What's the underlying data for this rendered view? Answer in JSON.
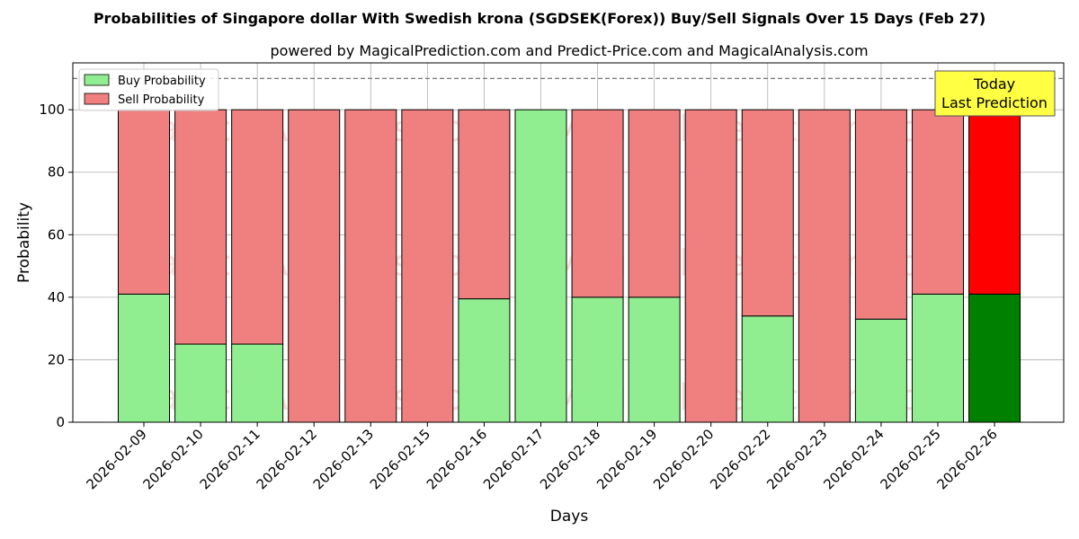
{
  "chart_data": {
    "type": "bar",
    "stacked": true,
    "title": "Probabilities of Singapore dollar With Swedish krona (SGDSEK(Forex)) Buy/Sell Signals Over 15 Days (Feb 27)",
    "subtitle": "powered by MagicalPrediction.com and Predict-Price.com and MagicalAnalysis.com",
    "xlabel": "Days",
    "ylabel": "Probability",
    "ylim": [
      0,
      115
    ],
    "yticks": [
      0,
      20,
      40,
      60,
      80,
      100
    ],
    "grid": true,
    "legend_position": "top-left",
    "reference_line": 110,
    "categories": [
      "2026-02-09",
      "2026-02-10",
      "2026-02-11",
      "2026-02-12",
      "2026-02-13",
      "2026-02-15",
      "2026-02-16",
      "2026-02-17",
      "2026-02-18",
      "2026-02-19",
      "2026-02-20",
      "2026-02-22",
      "2026-02-23",
      "2026-02-24",
      "2026-02-25",
      "2026-02-26"
    ],
    "series": [
      {
        "name": "Buy Probability",
        "color": "#90ee90",
        "highlight_color": "#008000",
        "values": [
          41,
          25,
          25,
          0,
          0,
          0,
          39.5,
          100,
          40,
          40,
          0,
          34,
          0,
          33,
          41,
          41
        ]
      },
      {
        "name": "Sell Probability",
        "color": "#f08080",
        "highlight_color": "#ff0000",
        "values": [
          59,
          75,
          75,
          100,
          100,
          100,
          60.5,
          0,
          60,
          60,
          100,
          66,
          100,
          67,
          59,
          59
        ]
      }
    ],
    "highlight_index": 15,
    "annotation": {
      "line1": "Today",
      "line2": "Last Prediction",
      "color": "#ffff44"
    },
    "watermarks": [
      "MagicalAnalysis.com",
      "MagicalPrediction.com"
    ]
  }
}
